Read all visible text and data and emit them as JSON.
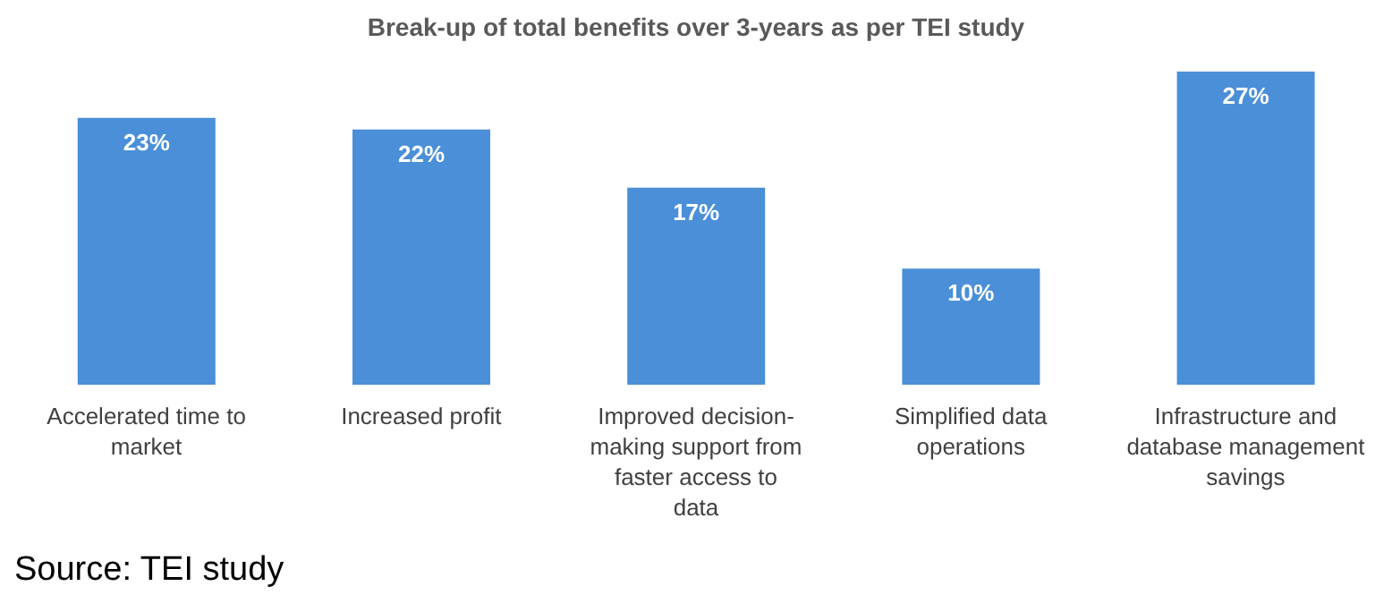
{
  "chart_data": {
    "type": "bar",
    "title": "Break-up of total benefits over 3-years as per TEI study",
    "categories": [
      "Accelerated time to market",
      "Increased profit",
      "Improved decision-making support from faster access to data",
      "Simplified data operations",
      "Infrastructure and database management savings"
    ],
    "values": [
      23,
      22,
      17,
      10,
      27
    ],
    "value_labels": [
      "23%",
      "22%",
      "17%",
      "10%",
      "27%"
    ],
    "color": "#4a8fd8",
    "annotations": [
      "Source: TEI study"
    ]
  }
}
